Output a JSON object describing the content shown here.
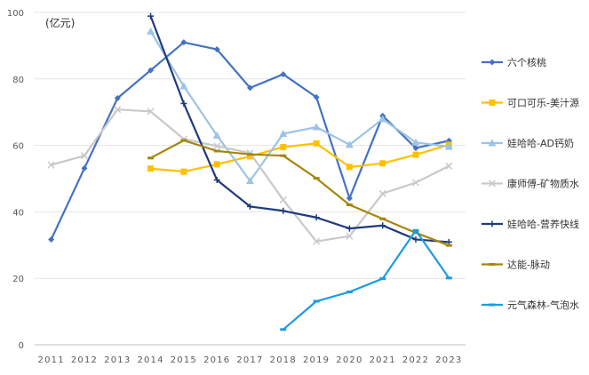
{
  "chart_data": {
    "type": "line",
    "unit_label": "(亿元)",
    "x": [
      "2011",
      "2012",
      "2013",
      "2014",
      "2015",
      "2016",
      "2017",
      "2018",
      "2019",
      "2020",
      "2021",
      "2022",
      "2023"
    ],
    "ylim": [
      0,
      100
    ],
    "yticks": [
      "0",
      "20",
      "40",
      "60",
      "80",
      "100"
    ],
    "grid": "horizontal",
    "legend": "right",
    "series": [
      {
        "name": "六个核桃",
        "color": "#4472C4",
        "marker": "diamond",
        "values": [
          31.7,
          53.1,
          74.2,
          82.6,
          91.0,
          88.9,
          77.3,
          81.4,
          74.5,
          44.1,
          68.9,
          59.2,
          61.4
        ]
      },
      {
        "name": "可口可乐-美汁源",
        "color": "#FFC000",
        "marker": "square",
        "values": [
          null,
          null,
          null,
          53.0,
          52.1,
          54.3,
          56.7,
          59.5,
          60.6,
          53.5,
          54.6,
          57.2,
          60.2
        ]
      },
      {
        "name": "娃哈哈-AD钙奶",
        "color": "#9DC3E6",
        "marker": "triangle",
        "values": [
          null,
          null,
          null,
          94.3,
          77.8,
          63.0,
          49.3,
          63.5,
          65.5,
          60.2,
          67.9,
          60.9,
          59.6
        ]
      },
      {
        "name": "康师傅-矿物质水",
        "color": "#C9C9C9",
        "marker": "x",
        "values": [
          54.1,
          56.9,
          70.8,
          70.2,
          61.9,
          59.8,
          57.7,
          43.6,
          31.1,
          32.7,
          45.5,
          48.8,
          53.8
        ]
      },
      {
        "name": "娃哈哈-营养快线",
        "color": "#1F3A7D",
        "marker": "plus",
        "values": [
          null,
          null,
          null,
          98.9,
          72.6,
          49.6,
          41.6,
          40.3,
          38.3,
          35.0,
          35.9,
          31.7,
          30.9
        ]
      },
      {
        "name": "达能-脉动",
        "color": "#A5860C",
        "marker": "dash",
        "values": [
          null,
          null,
          null,
          56.2,
          61.5,
          58.3,
          57.3,
          56.9,
          50.1,
          42.1,
          37.9,
          33.7,
          29.9
        ]
      },
      {
        "name": "元气森林-气泡水",
        "color": "#1E9BE0",
        "marker": "dash",
        "values": [
          null,
          null,
          null,
          null,
          null,
          null,
          null,
          4.6,
          13.1,
          15.9,
          19.9,
          34.4,
          20.1
        ]
      }
    ]
  }
}
